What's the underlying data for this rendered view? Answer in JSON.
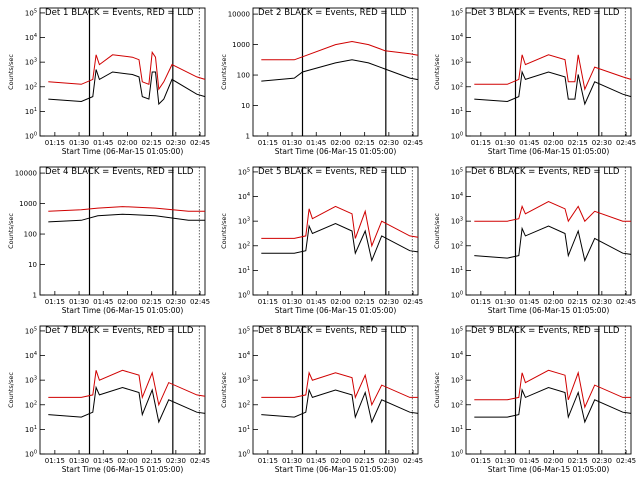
{
  "chart_data": {
    "type": "line",
    "x_tick_labels": [
      "01:15",
      "01:30",
      "01:45",
      "02:00",
      "02:15",
      "02:30",
      "02:45"
    ],
    "xlabel": "Start Time (06-Mar-15 01:05:00)",
    "ylabel": "Counts/sec",
    "y_scale": "log",
    "grid": false,
    "series_colors": {
      "events": "#000000",
      "lld": "#d00000"
    },
    "panels": [
      {
        "title": "Det 1  BLACK = Events, RED = LLD",
        "y_ticks": [
          "10^0",
          "10^1",
          "10^2",
          "10^3",
          "10^4",
          "10^5"
        ],
        "ylim_exp": [
          0,
          5.2
        ],
        "events": [
          [
            0.05,
            1.5
          ],
          [
            0.25,
            1.4
          ],
          [
            0.32,
            1.6
          ],
          [
            0.34,
            2.7
          ],
          [
            0.36,
            2.3
          ],
          [
            0.44,
            2.6
          ],
          [
            0.56,
            2.5
          ],
          [
            0.6,
            2.4
          ],
          [
            0.62,
            1.6
          ],
          [
            0.66,
            1.5
          ],
          [
            0.68,
            2.6
          ],
          [
            0.7,
            2.6
          ],
          [
            0.72,
            1.3
          ],
          [
            0.75,
            1.5
          ],
          [
            0.8,
            2.3
          ],
          [
            0.95,
            1.7
          ],
          [
            1.0,
            1.6
          ]
        ],
        "lld": [
          [
            0.05,
            2.2
          ],
          [
            0.25,
            2.1
          ],
          [
            0.32,
            2.3
          ],
          [
            0.34,
            3.3
          ],
          [
            0.36,
            2.9
          ],
          [
            0.44,
            3.3
          ],
          [
            0.56,
            3.2
          ],
          [
            0.6,
            3.1
          ],
          [
            0.62,
            2.2
          ],
          [
            0.66,
            2.1
          ],
          [
            0.68,
            3.4
          ],
          [
            0.7,
            3.2
          ],
          [
            0.72,
            1.9
          ],
          [
            0.75,
            2.2
          ],
          [
            0.8,
            2.9
          ],
          [
            0.95,
            2.4
          ],
          [
            1.0,
            2.3
          ]
        ]
      },
      {
        "title": "Det 2  BLACK = Events, RED = LLD",
        "y_ticks": [
          "1",
          "10",
          "100",
          "1000",
          "10000"
        ],
        "ylim_exp": [
          0,
          4.2
        ],
        "events": [
          [
            0.05,
            1.8
          ],
          [
            0.25,
            1.9
          ],
          [
            0.3,
            2.1
          ],
          [
            0.5,
            2.4
          ],
          [
            0.6,
            2.5
          ],
          [
            0.7,
            2.4
          ],
          [
            0.8,
            2.2
          ],
          [
            0.95,
            1.9
          ],
          [
            1.0,
            1.85
          ]
        ],
        "lld": [
          [
            0.05,
            2.5
          ],
          [
            0.25,
            2.5
          ],
          [
            0.3,
            2.6
          ],
          [
            0.5,
            3.0
          ],
          [
            0.6,
            3.1
          ],
          [
            0.7,
            3.0
          ],
          [
            0.8,
            2.8
          ],
          [
            0.95,
            2.7
          ],
          [
            1.0,
            2.65
          ]
        ]
      },
      {
        "title": "Det 3  BLACK = Events, RED = LLD",
        "y_ticks": [
          "10^0",
          "10^1",
          "10^2",
          "10^3",
          "10^4",
          "10^5"
        ],
        "ylim_exp": [
          0,
          5.2
        ],
        "events": [
          [
            0.05,
            1.5
          ],
          [
            0.25,
            1.4
          ],
          [
            0.32,
            1.6
          ],
          [
            0.34,
            2.6
          ],
          [
            0.36,
            2.3
          ],
          [
            0.5,
            2.6
          ],
          [
            0.6,
            2.4
          ],
          [
            0.62,
            1.5
          ],
          [
            0.66,
            1.5
          ],
          [
            0.68,
            2.5
          ],
          [
            0.72,
            1.3
          ],
          [
            0.78,
            2.2
          ],
          [
            0.95,
            1.7
          ],
          [
            1.0,
            1.6
          ]
        ],
        "lld": [
          [
            0.05,
            2.1
          ],
          [
            0.25,
            2.1
          ],
          [
            0.32,
            2.3
          ],
          [
            0.34,
            3.3
          ],
          [
            0.36,
            2.9
          ],
          [
            0.5,
            3.3
          ],
          [
            0.6,
            3.1
          ],
          [
            0.62,
            2.2
          ],
          [
            0.66,
            2.2
          ],
          [
            0.68,
            3.3
          ],
          [
            0.72,
            1.9
          ],
          [
            0.78,
            2.8
          ],
          [
            0.95,
            2.4
          ],
          [
            1.0,
            2.3
          ]
        ]
      },
      {
        "title": "Det 4  BLACK = Events, RED = LLD",
        "y_ticks": [
          "1",
          "10",
          "100",
          "1000",
          "10000"
        ],
        "ylim_exp": [
          0,
          4.2
        ],
        "events": [
          [
            0.05,
            2.4
          ],
          [
            0.25,
            2.45
          ],
          [
            0.35,
            2.6
          ],
          [
            0.5,
            2.65
          ],
          [
            0.7,
            2.6
          ],
          [
            0.9,
            2.45
          ],
          [
            1.0,
            2.45
          ]
        ],
        "lld": [
          [
            0.05,
            2.75
          ],
          [
            0.25,
            2.8
          ],
          [
            0.35,
            2.85
          ],
          [
            0.5,
            2.9
          ],
          [
            0.7,
            2.85
          ],
          [
            0.9,
            2.75
          ],
          [
            1.0,
            2.75
          ]
        ]
      },
      {
        "title": "Det 5  BLACK = Events, RED = LLD",
        "y_ticks": [
          "10^0",
          "10^1",
          "10^2",
          "10^3",
          "10^4",
          "10^5"
        ],
        "ylim_exp": [
          0,
          5.2
        ],
        "events": [
          [
            0.05,
            1.7
          ],
          [
            0.25,
            1.7
          ],
          [
            0.32,
            1.8
          ],
          [
            0.34,
            2.8
          ],
          [
            0.36,
            2.5
          ],
          [
            0.5,
            2.9
          ],
          [
            0.6,
            2.6
          ],
          [
            0.62,
            1.7
          ],
          [
            0.68,
            2.6
          ],
          [
            0.72,
            1.4
          ],
          [
            0.78,
            2.4
          ],
          [
            0.95,
            1.8
          ],
          [
            1.0,
            1.75
          ]
        ],
        "lld": [
          [
            0.05,
            2.3
          ],
          [
            0.25,
            2.3
          ],
          [
            0.32,
            2.4
          ],
          [
            0.34,
            3.5
          ],
          [
            0.36,
            3.1
          ],
          [
            0.5,
            3.6
          ],
          [
            0.6,
            3.3
          ],
          [
            0.62,
            2.3
          ],
          [
            0.68,
            3.4
          ],
          [
            0.72,
            2.0
          ],
          [
            0.78,
            3.0
          ],
          [
            0.95,
            2.4
          ],
          [
            1.0,
            2.35
          ]
        ]
      },
      {
        "title": "Det 6  BLACK = Events, RED = LLD",
        "y_ticks": [
          "10^0",
          "10^1",
          "10^2",
          "10^3",
          "10^4",
          "10^5"
        ],
        "ylim_exp": [
          0,
          5.2
        ],
        "events": [
          [
            0.05,
            1.6
          ],
          [
            0.25,
            1.5
          ],
          [
            0.32,
            1.6
          ],
          [
            0.34,
            2.7
          ],
          [
            0.36,
            2.4
          ],
          [
            0.5,
            2.8
          ],
          [
            0.6,
            2.5
          ],
          [
            0.62,
            1.6
          ],
          [
            0.68,
            2.6
          ],
          [
            0.72,
            1.4
          ],
          [
            0.78,
            2.3
          ],
          [
            0.95,
            1.7
          ],
          [
            1.0,
            1.65
          ]
        ],
        "lld": [
          [
            0.05,
            3.0
          ],
          [
            0.25,
            3.0
          ],
          [
            0.32,
            3.1
          ],
          [
            0.34,
            3.6
          ],
          [
            0.36,
            3.3
          ],
          [
            0.5,
            3.8
          ],
          [
            0.6,
            3.5
          ],
          [
            0.62,
            3.0
          ],
          [
            0.68,
            3.6
          ],
          [
            0.72,
            3.0
          ],
          [
            0.78,
            3.4
          ],
          [
            0.95,
            3.0
          ],
          [
            1.0,
            3.0
          ]
        ]
      },
      {
        "title": "Det 7  BLACK = Events, RED = LLD",
        "y_ticks": [
          "10^0",
          "10^1",
          "10^2",
          "10^3",
          "10^4",
          "10^5"
        ],
        "ylim_exp": [
          0,
          5.2
        ],
        "events": [
          [
            0.05,
            1.6
          ],
          [
            0.25,
            1.5
          ],
          [
            0.32,
            1.7
          ],
          [
            0.34,
            2.7
          ],
          [
            0.36,
            2.4
          ],
          [
            0.5,
            2.7
          ],
          [
            0.6,
            2.5
          ],
          [
            0.62,
            1.6
          ],
          [
            0.68,
            2.6
          ],
          [
            0.72,
            1.3
          ],
          [
            0.78,
            2.2
          ],
          [
            0.95,
            1.7
          ],
          [
            1.0,
            1.65
          ]
        ],
        "lld": [
          [
            0.05,
            2.3
          ],
          [
            0.25,
            2.3
          ],
          [
            0.32,
            2.4
          ],
          [
            0.34,
            3.4
          ],
          [
            0.36,
            3.0
          ],
          [
            0.5,
            3.4
          ],
          [
            0.6,
            3.2
          ],
          [
            0.62,
            2.3
          ],
          [
            0.68,
            3.3
          ],
          [
            0.72,
            2.0
          ],
          [
            0.78,
            2.9
          ],
          [
            0.95,
            2.4
          ],
          [
            1.0,
            2.35
          ]
        ]
      },
      {
        "title": "Det 8  BLACK = Events, RED = LLD",
        "y_ticks": [
          "10^0",
          "10^1",
          "10^2",
          "10^3",
          "10^4",
          "10^5"
        ],
        "ylim_exp": [
          0,
          5.2
        ],
        "events": [
          [
            0.05,
            1.6
          ],
          [
            0.25,
            1.5
          ],
          [
            0.32,
            1.7
          ],
          [
            0.34,
            2.6
          ],
          [
            0.36,
            2.3
          ],
          [
            0.5,
            2.6
          ],
          [
            0.6,
            2.4
          ],
          [
            0.62,
            1.5
          ],
          [
            0.68,
            2.5
          ],
          [
            0.72,
            1.3
          ],
          [
            0.78,
            2.2
          ],
          [
            0.95,
            1.7
          ],
          [
            1.0,
            1.65
          ]
        ],
        "lld": [
          [
            0.05,
            2.3
          ],
          [
            0.25,
            2.3
          ],
          [
            0.32,
            2.4
          ],
          [
            0.34,
            3.3
          ],
          [
            0.36,
            3.0
          ],
          [
            0.5,
            3.3
          ],
          [
            0.6,
            3.1
          ],
          [
            0.62,
            2.3
          ],
          [
            0.68,
            3.2
          ],
          [
            0.72,
            2.0
          ],
          [
            0.78,
            2.8
          ],
          [
            0.95,
            2.3
          ],
          [
            1.0,
            2.3
          ]
        ]
      },
      {
        "title": "Det 9  BLACK = Events, RED = LLD",
        "y_ticks": [
          "10^0",
          "10^1",
          "10^2",
          "10^3",
          "10^4",
          "10^5"
        ],
        "ylim_exp": [
          0,
          5.2
        ],
        "events": [
          [
            0.05,
            1.5
          ],
          [
            0.25,
            1.5
          ],
          [
            0.32,
            1.6
          ],
          [
            0.34,
            2.6
          ],
          [
            0.36,
            2.3
          ],
          [
            0.5,
            2.7
          ],
          [
            0.6,
            2.5
          ],
          [
            0.62,
            1.5
          ],
          [
            0.68,
            2.5
          ],
          [
            0.72,
            1.3
          ],
          [
            0.78,
            2.2
          ],
          [
            0.95,
            1.7
          ],
          [
            1.0,
            1.65
          ]
        ],
        "lld": [
          [
            0.05,
            2.2
          ],
          [
            0.25,
            2.2
          ],
          [
            0.32,
            2.3
          ],
          [
            0.34,
            3.3
          ],
          [
            0.36,
            2.9
          ],
          [
            0.5,
            3.4
          ],
          [
            0.6,
            3.2
          ],
          [
            0.62,
            2.2
          ],
          [
            0.68,
            3.3
          ],
          [
            0.72,
            1.9
          ],
          [
            0.78,
            2.8
          ],
          [
            0.95,
            2.3
          ],
          [
            1.0,
            2.3
          ]
        ]
      }
    ]
  }
}
